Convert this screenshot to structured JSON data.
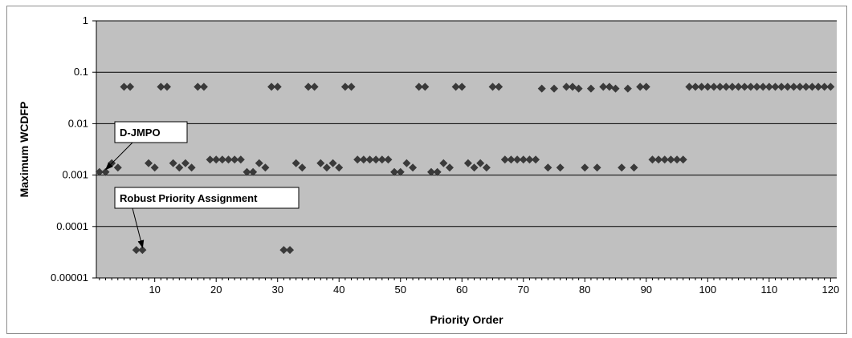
{
  "chart_data": {
    "type": "scatter",
    "title": "",
    "xlabel": "Priority Order",
    "ylabel": "Maximum WCDFP",
    "y_scale": "log",
    "xlim": [
      0.5,
      121
    ],
    "ylim": [
      1e-05,
      1
    ],
    "x_ticks": [
      "10",
      "20",
      "30",
      "40",
      "50",
      "60",
      "70",
      "80",
      "90",
      "100",
      "110",
      "120"
    ],
    "y_ticks": [
      "1",
      "0.1",
      "0.01",
      "0.001",
      "0.0001",
      "0.00001"
    ],
    "grid": "horizontal",
    "plot_background": "#c0c0c0",
    "marker_color": "#3a3a3a",
    "marker": "diamond",
    "annotations": [
      {
        "text": "D-JMPO",
        "points_to": [
          1.5,
          0.00115
        ]
      },
      {
        "text": "Robust Priority Assignment",
        "points_to": [
          7.5,
          3.5e-05
        ]
      }
    ],
    "series": [
      {
        "points": [
          [
            1,
            0.00115
          ],
          [
            2,
            0.00115
          ],
          [
            3,
            0.0017
          ],
          [
            4,
            0.0014
          ],
          [
            5,
            0.052
          ],
          [
            6,
            0.052
          ],
          [
            9,
            0.0017
          ],
          [
            10,
            0.0014
          ],
          [
            11,
            0.052
          ],
          [
            12,
            0.052
          ],
          [
            13,
            0.0017
          ],
          [
            14,
            0.0014
          ],
          [
            15,
            0.0017
          ],
          [
            16,
            0.0014
          ],
          [
            17,
            0.052
          ],
          [
            18,
            0.052
          ],
          [
            19,
            0.002
          ],
          [
            20,
            0.002
          ],
          [
            21,
            0.002
          ],
          [
            22,
            0.002
          ],
          [
            23,
            0.002
          ],
          [
            24,
            0.002
          ],
          [
            25,
            0.00115
          ],
          [
            26,
            0.00115
          ],
          [
            27,
            0.0017
          ],
          [
            28,
            0.0014
          ],
          [
            29,
            0.052
          ],
          [
            30,
            0.052
          ],
          [
            31,
            3.5e-05
          ],
          [
            32,
            3.5e-05
          ],
          [
            33,
            0.0017
          ],
          [
            34,
            0.0014
          ],
          [
            35,
            0.052
          ],
          [
            36,
            0.052
          ],
          [
            37,
            0.0017
          ],
          [
            38,
            0.0014
          ],
          [
            39,
            0.0017
          ],
          [
            40,
            0.0014
          ],
          [
            41,
            0.052
          ],
          [
            42,
            0.052
          ],
          [
            43,
            0.002
          ],
          [
            44,
            0.002
          ],
          [
            45,
            0.002
          ],
          [
            46,
            0.002
          ],
          [
            47,
            0.002
          ],
          [
            48,
            0.002
          ],
          [
            49,
            0.00115
          ],
          [
            50,
            0.00115
          ],
          [
            51,
            0.0017
          ],
          [
            52,
            0.0014
          ],
          [
            53,
            0.052
          ],
          [
            54,
            0.052
          ],
          [
            55,
            0.00115
          ],
          [
            56,
            0.00115
          ],
          [
            57,
            0.0017
          ],
          [
            58,
            0.0014
          ],
          [
            59,
            0.052
          ],
          [
            60,
            0.052
          ],
          [
            61,
            0.0017
          ],
          [
            62,
            0.0014
          ],
          [
            63,
            0.0017
          ],
          [
            64,
            0.0014
          ],
          [
            65,
            0.052
          ],
          [
            66,
            0.052
          ],
          [
            67,
            0.002
          ],
          [
            68,
            0.002
          ],
          [
            69,
            0.002
          ],
          [
            70,
            0.002
          ],
          [
            71,
            0.002
          ],
          [
            72,
            0.002
          ],
          [
            73,
            0.048
          ],
          [
            74,
            0.0014
          ],
          [
            75,
            0.048
          ],
          [
            76,
            0.0014
          ],
          [
            77,
            0.052
          ],
          [
            78,
            0.052
          ],
          [
            79,
            0.048
          ],
          [
            80,
            0.0014
          ],
          [
            81,
            0.048
          ],
          [
            82,
            0.0014
          ],
          [
            83,
            0.052
          ],
          [
            84,
            0.052
          ],
          [
            85,
            0.048
          ],
          [
            86,
            0.0014
          ],
          [
            87,
            0.048
          ],
          [
            88,
            0.0014
          ],
          [
            89,
            0.052
          ],
          [
            90,
            0.052
          ],
          [
            91,
            0.002
          ],
          [
            92,
            0.002
          ],
          [
            93,
            0.002
          ],
          [
            94,
            0.002
          ],
          [
            95,
            0.002
          ],
          [
            96,
            0.002
          ],
          [
            7,
            3.5e-05
          ],
          [
            8,
            3.5e-05
          ],
          [
            97,
            0.052
          ],
          [
            98,
            0.052
          ],
          [
            99,
            0.052
          ],
          [
            100,
            0.052
          ],
          [
            101,
            0.052
          ],
          [
            102,
            0.052
          ],
          [
            103,
            0.052
          ],
          [
            104,
            0.052
          ],
          [
            105,
            0.052
          ],
          [
            106,
            0.052
          ],
          [
            107,
            0.052
          ],
          [
            108,
            0.052
          ],
          [
            109,
            0.052
          ],
          [
            110,
            0.052
          ],
          [
            111,
            0.052
          ],
          [
            112,
            0.052
          ],
          [
            113,
            0.052
          ],
          [
            114,
            0.052
          ],
          [
            115,
            0.052
          ],
          [
            116,
            0.052
          ],
          [
            117,
            0.052
          ],
          [
            118,
            0.052
          ],
          [
            119,
            0.052
          ],
          [
            120,
            0.052
          ]
        ]
      }
    ]
  }
}
